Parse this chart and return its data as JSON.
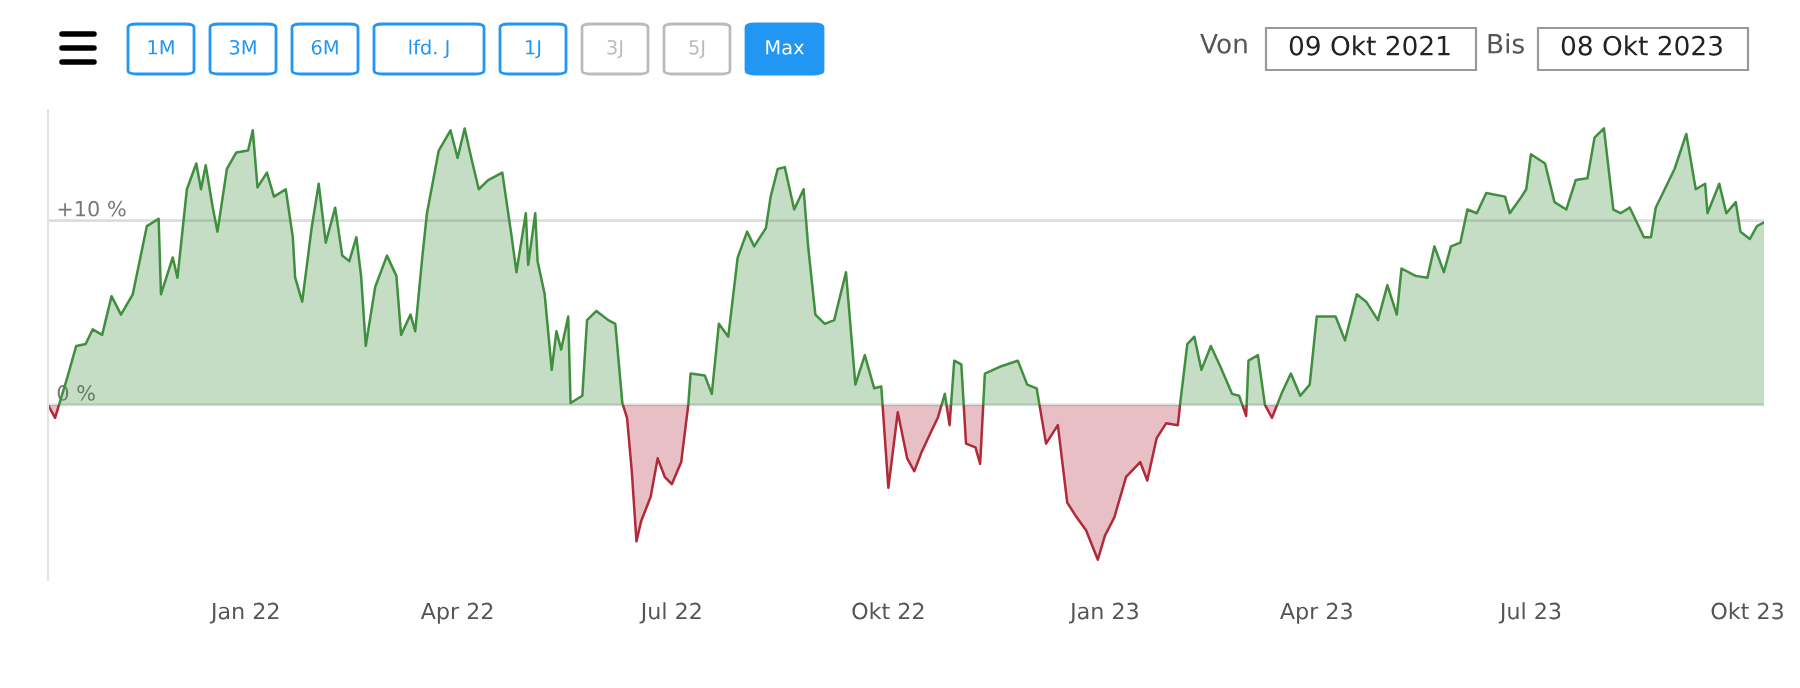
{
  "chart_data": {
    "type": "area",
    "annotations": [
      "1M",
      "3M",
      "6M",
      "lfd. J",
      "1J",
      "3J",
      "5J",
      "Max",
      "Von",
      "09 Okt 2021",
      "Bis",
      "08 Okt 2023"
    ],
    "x": [
      "2021-10-09",
      "2021-10-12",
      "2021-10-17",
      "2021-10-21",
      "2021-10-25",
      "2021-10-28",
      "2021-11-01",
      "2021-11-05",
      "2021-11-09",
      "2021-11-14",
      "2021-11-20",
      "2021-11-25",
      "2021-11-26",
      "2021-12-01",
      "2021-12-03",
      "2021-12-07",
      "2021-12-11",
      "2021-12-13",
      "2021-12-15",
      "2021-12-18",
      "2021-12-20",
      "2021-12-24",
      "2021-12-28",
      "2022-01-02",
      "2022-01-04",
      "2022-01-06",
      "2022-01-10",
      "2022-01-13",
      "2022-01-18",
      "2022-01-21",
      "2022-01-22",
      "2022-01-25",
      "2022-01-29",
      "2022-02-01",
      "2022-02-04",
      "2022-02-08",
      "2022-02-11",
      "2022-02-14",
      "2022-02-17",
      "2022-02-19",
      "2022-02-21",
      "2022-02-25",
      "2022-03-02",
      "2022-03-06",
      "2022-03-08",
      "2022-03-12",
      "2022-03-14",
      "2022-03-17",
      "2022-03-19",
      "2022-03-24",
      "2022-03-29",
      "2022-04-01",
      "2022-04-04",
      "2022-04-07",
      "2022-04-10",
      "2022-04-14",
      "2022-04-20",
      "2022-04-24",
      "2022-04-26",
      "2022-04-30",
      "2022-05-01",
      "2022-05-04",
      "2022-05-05",
      "2022-05-08",
      "2022-05-11",
      "2022-05-13",
      "2022-05-15",
      "2022-05-18",
      "2022-05-19",
      "2022-05-24",
      "2022-05-26",
      "2022-05-30",
      "2022-06-04",
      "2022-06-07",
      "2022-06-10",
      "2022-06-12",
      "2022-06-14",
      "2022-06-16",
      "2022-06-18",
      "2022-06-22",
      "2022-06-25",
      "2022-06-28",
      "2022-07-01",
      "2022-07-05",
      "2022-07-08",
      "2022-07-09",
      "2022-07-15",
      "2022-07-18",
      "2022-07-21",
      "2022-07-25",
      "2022-07-29",
      "2022-08-02",
      "2022-08-05",
      "2022-08-10",
      "2022-08-12",
      "2022-08-15",
      "2022-08-18",
      "2022-08-22",
      "2022-08-26",
      "2022-08-28",
      "2022-08-31",
      "2022-09-04",
      "2022-09-08",
      "2022-09-13",
      "2022-09-17",
      "2022-09-21",
      "2022-09-25",
      "2022-09-28",
      "2022-10-01",
      "2022-10-05",
      "2022-10-09",
      "2022-10-12",
      "2022-10-15",
      "2022-10-19",
      "2022-10-22",
      "2022-10-25",
      "2022-10-27",
      "2022-10-29",
      "2022-11-01",
      "2022-11-03",
      "2022-11-07",
      "2022-11-09",
      "2022-11-11",
      "2022-11-18",
      "2022-11-25",
      "2022-11-29",
      "2022-12-03",
      "2022-12-07",
      "2022-12-12",
      "2022-12-16",
      "2022-12-20",
      "2022-12-24",
      "2022-12-29",
      "2023-01-01",
      "2023-01-05",
      "2023-01-10",
      "2023-01-16",
      "2023-01-19",
      "2023-01-23",
      "2023-01-27",
      "2023-02-01",
      "2023-02-02",
      "2023-02-05",
      "2023-02-08",
      "2023-02-11",
      "2023-02-15",
      "2023-02-19",
      "2023-02-24",
      "2023-02-27",
      "2023-03-02",
      "2023-03-03",
      "2023-03-07",
      "2023-03-10",
      "2023-03-13",
      "2023-03-17",
      "2023-03-21",
      "2023-03-25",
      "2023-03-29",
      "2023-04-01",
      "2023-04-09",
      "2023-04-13",
      "2023-04-18",
      "2023-04-22",
      "2023-04-27",
      "2023-05-01",
      "2023-05-05",
      "2023-05-07",
      "2023-05-13",
      "2023-05-18",
      "2023-05-21",
      "2023-05-25",
      "2023-05-28",
      "2023-06-01",
      "2023-06-04",
      "2023-06-08",
      "2023-06-12",
      "2023-06-20",
      "2023-06-22",
      "2023-06-27",
      "2023-06-29",
      "2023-07-01",
      "2023-07-07",
      "2023-07-11",
      "2023-07-16",
      "2023-07-20",
      "2023-07-25",
      "2023-07-28",
      "2023-08-01",
      "2023-08-05",
      "2023-08-08",
      "2023-08-12",
      "2023-08-18",
      "2023-08-21",
      "2023-08-23",
      "2023-08-31",
      "2023-09-05",
      "2023-09-09",
      "2023-09-13",
      "2023-09-14",
      "2023-09-19",
      "2023-09-22",
      "2023-09-26",
      "2023-09-28",
      "2023-10-02",
      "2023-10-05",
      "2023-10-08"
    ],
    "series": [
      {
        "colors": [
          "#3f8f3f",
          "#b02a3a",
          "#3f8f3f",
          "#3f8f3f",
          "#3f8f3f",
          "#3f8f3f",
          "#3f8f3f",
          "#3f8f3f",
          "#3f8f3f",
          "#3f8f3f",
          "#3f8f3f",
          "#3f8f3f",
          "#3f8f3f",
          "#3f8f3f",
          "#3f8f3f",
          "#3f8f3f",
          "#3f8f3f",
          "#3f8f3f",
          "#3f8f3f",
          "#3f8f3f",
          "#3f8f3f",
          "#3f8f3f",
          "#3f8f3f",
          "#3f8f3f",
          "#3f8f3f",
          "#3f8f3f",
          "#3f8f3f",
          "#3f8f3f",
          "#3f8f3f",
          "#3f8f3f",
          "#3f8f3f",
          "#3f8f3f",
          "#3f8f3f",
          "#3f8f3f",
          "#3f8f3f",
          "#3f8f3f",
          "#3f8f3f",
          "#3f8f3f",
          "#3f8f3f",
          "#3f8f3f",
          "#3f8f3f",
          "#3f8f3f",
          "#3f8f3f",
          "#3f8f3f",
          "#3f8f3f",
          "#3f8f3f",
          "#3f8f3f",
          "#3f8f3f",
          "#3f8f3f",
          "#3f8f3f",
          "#3f8f3f",
          "#3f8f3f",
          "#3f8f3f",
          "#3f8f3f",
          "#3f8f3f",
          "#3f8f3f",
          "#3f8f3f",
          "#3f8f3f",
          "#3f8f3f",
          "#3f8f3f",
          "#3f8f3f",
          "#3f8f3f",
          "#3f8f3f",
          "#3f8f3f",
          "#3f8f3f",
          "#3f8f3f",
          "#3f8f3f",
          "#3f8f3f",
          "#3f8f3f",
          "#3f8f3f",
          "#3f8f3f",
          "#3f8f3f",
          "#3f8f3f",
          "#3f8f3f",
          "#3f8f3f",
          "#b02a3a",
          "#b02a3a",
          "#b02a3a",
          "#b02a3a",
          "#b02a3a",
          "#b02a3a",
          "#b02a3a",
          "#b02a3a",
          "#b02a3a",
          "#3f8f3f",
          "#3f8f3f",
          "#3f8f3f",
          "#3f8f3f",
          "#3f8f3f",
          "#3f8f3f",
          "#3f8f3f",
          "#3f8f3f",
          "#3f8f3f",
          "#3f8f3f",
          "#3f8f3f",
          "#3f8f3f",
          "#3f8f3f",
          "#3f8f3f",
          "#3f8f3f",
          "#3f8f3f",
          "#3f8f3f",
          "#3f8f3f",
          "#3f8f3f",
          "#3f8f3f",
          "#3f8f3f",
          "#3f8f3f",
          "#3f8f3f",
          "#3f8f3f",
          "#b02a3a",
          "#b02a3a",
          "#b02a3a",
          "#b02a3a",
          "#b02a3a",
          "#b02a3a",
          "#b02a3a",
          "#3f8f3f",
          "#b02a3a",
          "#3f8f3f",
          "#3f8f3f",
          "#b02a3a",
          "#b02a3a",
          "#b02a3a",
          "#3f8f3f",
          "#3f8f3f",
          "#3f8f3f",
          "#3f8f3f",
          "#3f8f3f",
          "#b02a3a",
          "#b02a3a",
          "#b02a3a",
          "#b02a3a",
          "#b02a3a",
          "#b02a3a",
          "#b02a3a",
          "#b02a3a",
          "#b02a3a",
          "#b02a3a",
          "#b02a3a",
          "#b02a3a",
          "#b02a3a",
          "#b02a3a",
          "#3f8f3f",
          "#3f8f3f",
          "#3f8f3f",
          "#3f8f3f",
          "#3f8f3f",
          "#3f8f3f",
          "#3f8f3f",
          "#3f8f3f",
          "#b02a3a",
          "#3f8f3f",
          "#3f8f3f",
          "#3f8f3f",
          "#b02a3a",
          "#3f8f3f",
          "#3f8f3f",
          "#3f8f3f",
          "#3f8f3f",
          "#3f8f3f",
          "#3f8f3f",
          "#3f8f3f",
          "#3f8f3f",
          "#3f8f3f",
          "#3f8f3f",
          "#3f8f3f",
          "#3f8f3f",
          "#3f8f3f",
          "#3f8f3f",
          "#3f8f3f",
          "#3f8f3f",
          "#3f8f3f",
          "#3f8f3f",
          "#3f8f3f",
          "#3f8f3f",
          "#3f8f3f",
          "#3f8f3f",
          "#3f8f3f",
          "#3f8f3f",
          "#3f8f3f",
          "#3f8f3f",
          "#3f8f3f",
          "#3f8f3f",
          "#3f8f3f",
          "#3f8f3f",
          "#3f8f3f",
          "#3f8f3f",
          "#3f8f3f",
          "#3f8f3f",
          "#3f8f3f",
          "#3f8f3f",
          "#3f8f3f",
          "#3f8f3f",
          "#3f8f3f",
          "#3f8f3f",
          "#3f8f3f",
          "#3f8f3f",
          "#3f8f3f",
          "#3f8f3f",
          "#3f8f3f",
          "#3f8f3f",
          "#3f8f3f",
          "#3f8f3f",
          "#3f8f3f",
          "#3f8f3f",
          "#3f8f3f",
          "#3f8f3f"
        ],
        "values": [
          0,
          -0.7,
          1.4,
          3.2,
          3.3,
          4.1,
          3.8,
          5.9,
          4.9,
          6.0,
          9.7,
          10.1,
          6.0,
          8.0,
          6.9,
          11.7,
          13.1,
          11.7,
          13.0,
          10.7,
          9.4,
          12.8,
          13.7,
          13.8,
          14.9,
          11.8,
          12.6,
          11.3,
          11.7,
          9.1,
          6.9,
          5.6,
          9.6,
          12.0,
          8.8,
          10.7,
          8.1,
          7.8,
          9.1,
          7.0,
          3.2,
          6.4,
          8.1,
          7.0,
          3.8,
          4.9,
          4.0,
          8.0,
          10.4,
          13.8,
          14.9,
          13.4,
          15.0,
          13.3,
          11.7,
          12.2,
          12.6,
          9.1,
          7.2,
          10.4,
          7.6,
          10.4,
          7.8,
          6.0,
          1.9,
          4.0,
          3.0,
          4.8,
          0.1,
          0.5,
          4.6,
          5.1,
          4.6,
          4.4,
          0.1,
          -0.7,
          -3.6,
          -7.4,
          -6.3,
          -5.0,
          -2.9,
          -3.9,
          -4.3,
          -3.1,
          0,
          1.7,
          1.6,
          0.6,
          4.4,
          3.7,
          8.0,
          9.4,
          8.6,
          9.6,
          11.3,
          12.8,
          12.9,
          10.6,
          11.7,
          8.5,
          4.9,
          4.4,
          4.6,
          7.2,
          1.1,
          2.7,
          0.9,
          1.0,
          -4.5,
          -0.4,
          -2.9,
          -3.6,
          -2.6,
          -1.5,
          -0.7,
          0.6,
          -1.1,
          2.4,
          2.2,
          -2.1,
          -2.3,
          -3.2,
          1.7,
          2.1,
          2.4,
          1.1,
          0.9,
          -2.1,
          -1.1,
          -5.3,
          -6.1,
          -6.8,
          -8.4,
          -7.1,
          -6.1,
          -3.9,
          -3.1,
          -4.1,
          -1.8,
          -1.0,
          -1.1,
          0.1,
          3.3,
          3.7,
          1.9,
          3.2,
          2.1,
          0.6,
          0.5,
          -0.6,
          2.4,
          2.7,
          0,
          -0.7,
          0.6,
          1.7,
          0.5,
          1.1,
          4.8,
          4.8,
          3.5,
          6.0,
          5.6,
          4.6,
          6.5,
          4.9,
          7.4,
          7.0,
          6.9,
          8.6,
          7.2,
          8.6,
          8.8,
          10.6,
          10.4,
          11.5,
          11.3,
          10.4,
          11.3,
          11.7,
          13.6,
          13.1,
          11.0,
          10.6,
          12.2,
          12.3,
          14.5,
          15.0,
          10.6,
          10.4,
          10.7,
          9.1,
          9.1,
          10.7,
          12.8,
          14.7,
          11.7,
          12.0,
          10.4,
          12.0,
          10.4,
          11.0,
          9.4,
          9.0,
          9.7,
          9.9
        ]
      }
    ],
    "xlim": [
      "2021-10-09",
      "2023-10-08"
    ],
    "xticks": [
      {
        "value": "2022-01-01",
        "label": "Jan 22"
      },
      {
        "value": "2022-04-01",
        "label": "Apr 22"
      },
      {
        "value": "2022-07-01",
        "label": "Jul 22"
      },
      {
        "value": "2022-10-01",
        "label": "Okt 22"
      },
      {
        "value": "2023-01-01",
        "label": "Jan 23"
      },
      {
        "value": "2023-04-01",
        "label": "Apr 23"
      },
      {
        "value": "2023-07-01",
        "label": "Jul 23"
      },
      {
        "value": "2023-10-01",
        "label": "Okt 23"
      }
    ],
    "ylim": [
      -9.5,
      16
    ],
    "yticks": [
      {
        "value": 0,
        "label": "0 %"
      },
      {
        "value": 10,
        "label": "+10 %"
      }
    ],
    "grid": "y",
    "legend": false
  }
}
